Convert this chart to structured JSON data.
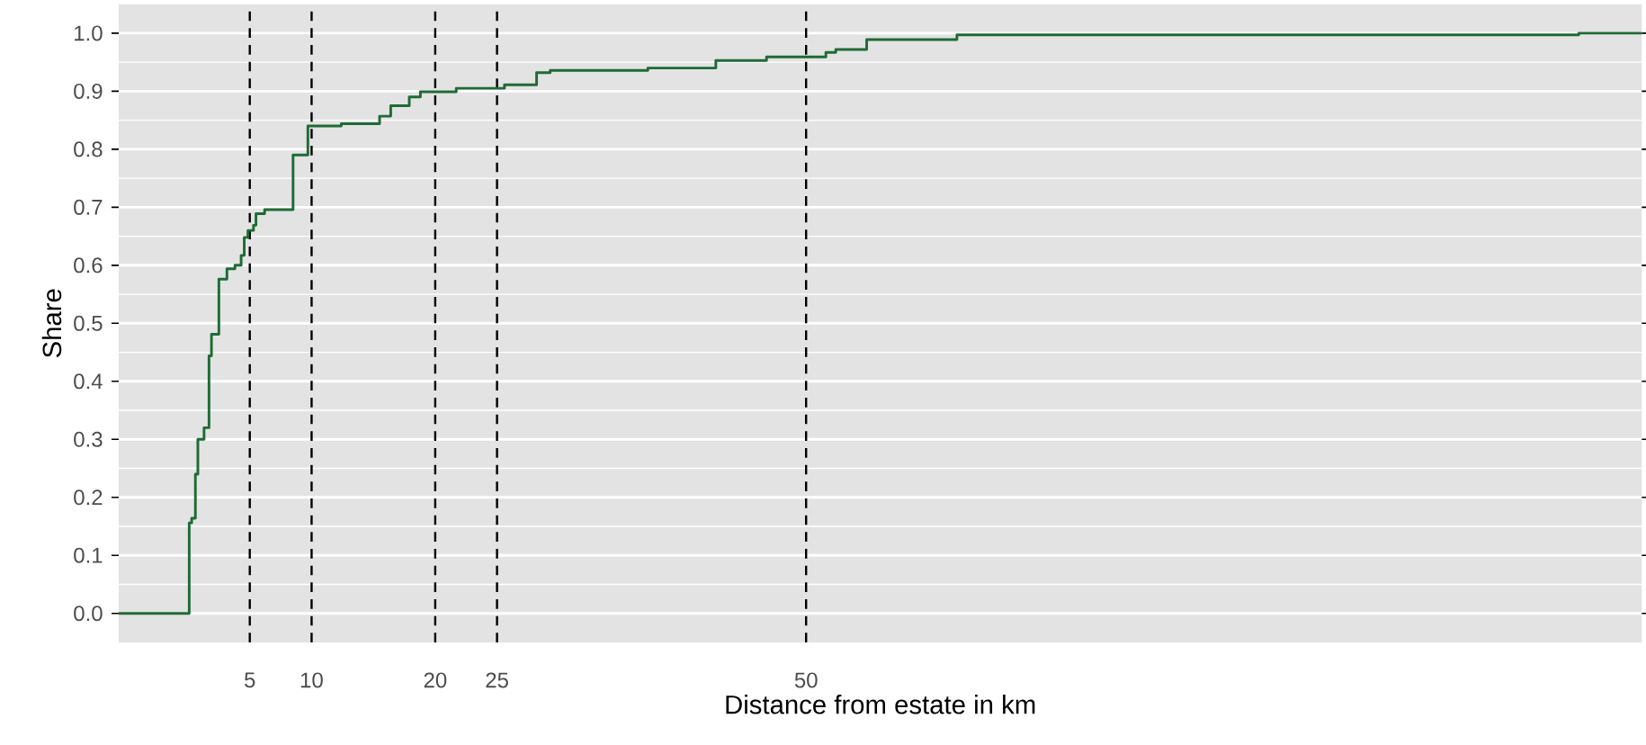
{
  "chart_data": {
    "type": "step",
    "xlabel": "Distance from estate in km",
    "ylabel": "Share",
    "x": [
      -5.6,
      0.1,
      0.3,
      0.6,
      0.8,
      1.3,
      1.7,
      1.9,
      2.5,
      3.15,
      3.8,
      4.3,
      4.55,
      4.85,
      5.3,
      5.5,
      6.2,
      8.5,
      9.7,
      12.4,
      15.5,
      16.4,
      17.9,
      18.8,
      21.7,
      25.6,
      28.2,
      29.3,
      37.2,
      42.7,
      46.8,
      51.6,
      52.4,
      54.9,
      62.2,
      112.5,
      117.6
    ],
    "values": [
      0.0,
      0.156,
      0.164,
      0.24,
      0.3,
      0.32,
      0.444,
      0.481,
      0.576,
      0.594,
      0.6,
      0.617,
      0.648,
      0.66,
      0.669,
      0.689,
      0.696,
      0.79,
      0.84,
      0.844,
      0.857,
      0.875,
      0.89,
      0.899,
      0.905,
      0.911,
      0.932,
      0.936,
      0.94,
      0.953,
      0.959,
      0.967,
      0.972,
      0.989,
      0.997,
      1.0,
      1.0
    ],
    "color": "#1e6b35",
    "xlim": [
      -5.6,
      117.6
    ],
    "ylim": [
      -0.05,
      1.05
    ],
    "xticks": [
      5,
      10,
      20,
      25,
      50
    ],
    "yticks": [
      {
        "value": 0,
        "label": "0.0"
      },
      {
        "value": 0.1,
        "label": "0.1"
      },
      {
        "value": 0.2,
        "label": "0.2"
      },
      {
        "value": 0.3,
        "label": "0.3"
      },
      {
        "value": 0.4,
        "label": "0.4"
      },
      {
        "value": 0.5,
        "label": "0.5"
      },
      {
        "value": 0.6,
        "label": "0.6"
      },
      {
        "value": 0.7,
        "label": "0.7"
      },
      {
        "value": 0.8,
        "label": "0.8"
      },
      {
        "value": 0.9,
        "label": "0.9"
      },
      {
        "value": 1,
        "label": "1.0"
      }
    ],
    "grid": "y",
    "ref_lines": [
      {
        "axis": "x",
        "value": 5,
        "color": "#000000",
        "line_style": "dashed"
      },
      {
        "axis": "x",
        "value": 10,
        "color": "#000000",
        "line_style": "dashed"
      },
      {
        "axis": "x",
        "value": 20,
        "color": "#000000",
        "line_style": "dashed"
      },
      {
        "axis": "x",
        "value": 25,
        "color": "#000000",
        "line_style": "dashed"
      },
      {
        "axis": "x",
        "value": 50,
        "color": "#000000",
        "line_style": "dashed"
      }
    ]
  }
}
